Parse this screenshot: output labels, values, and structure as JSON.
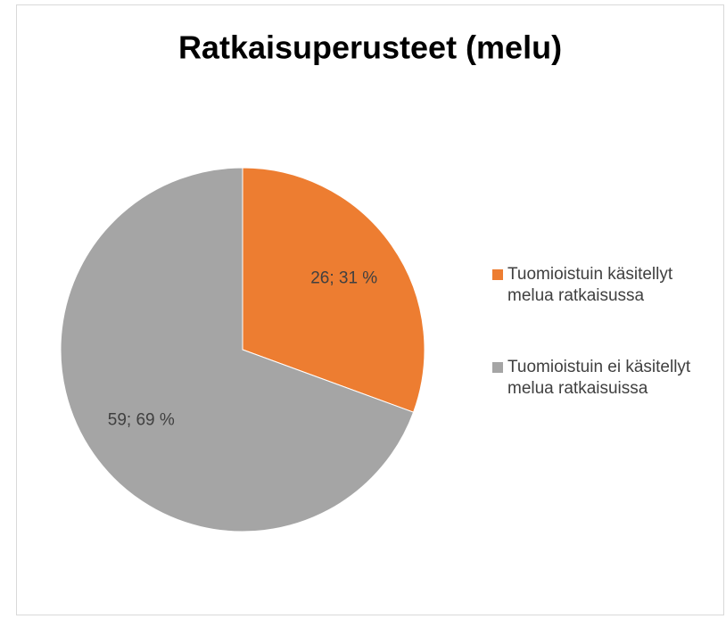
{
  "chart_data": {
    "type": "pie",
    "title": "Ratkaisuperusteet (melu)",
    "categories": [
      "Tuomioistuin käsitellyt melua ratkaisussa",
      "Tuomioistuin ei käsitellyt melua ratkaisuissa"
    ],
    "values": [
      26,
      59
    ],
    "value_labels": [
      "26; 31 %",
      "59; 69 %"
    ],
    "colors": [
      "#ed7d31",
      "#a5a5a5"
    ],
    "legend": "right"
  }
}
